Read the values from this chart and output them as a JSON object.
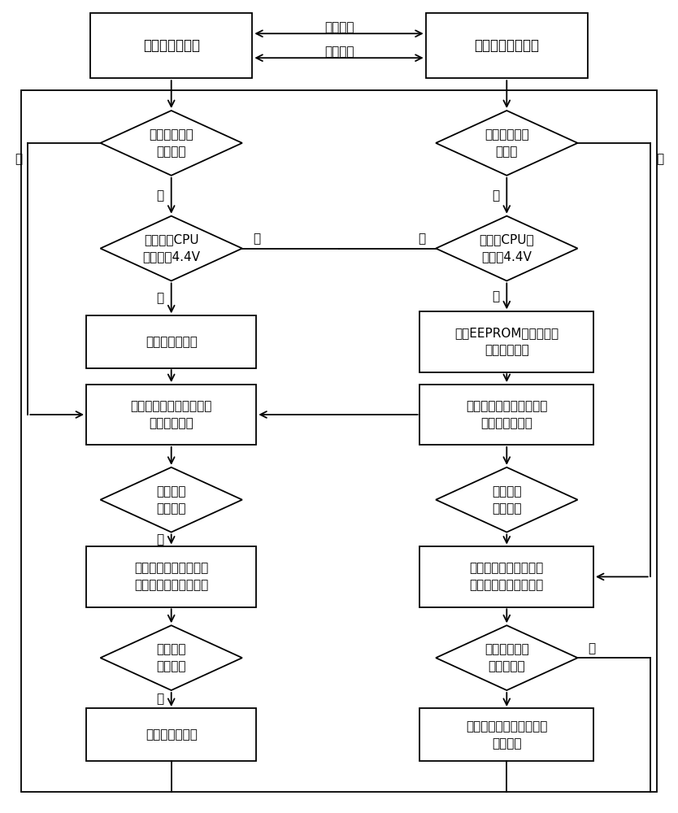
{
  "bg_color": "#ffffff",
  "line_color": "#000000",
  "text_color": "#000000",
  "top_left_text": "当班机（主机）",
  "top_right_text": "非当班机（备机）",
  "arrow_top_label": "健康状态",
  "arrow_bot_label": "工作状态",
  "L_d1_text": "非当班机连续\n四次狗咋",
  "L_d2_text": "非当班机CPU\n供电低于4.4V",
  "L_b1_text": "将非当班机断电",
  "L_b2_text": "按照自身程序或遥控指令\n执行配电操作",
  "L_d3_text": "回采操作\n结果正确",
  "L_b3_text": "将该指令内容发送给备\n机，并将备机输出使能",
  "L_d4_text": "回采操作\n结果正确",
  "L_b4_text": "将备机输出禁止",
  "R_d1_text": "当班机连续四\n次狗咋",
  "R_d2_text": "当班机CPU供\n电低于4.4V",
  "R_b1_text": "读取EEPROM中保存的当\n班机最新状态",
  "R_b2_text": "按照预设流程，执行后续\n操作并回采状态",
  "R_d3_text": "回采操作\n结果正确",
  "R_b3_text": "将非当班机切换为当班\n机，原当班机上电复位",
  "R_d4_text": "收到当班机补\n发指令请求",
  "R_b4_text": "根据当班机发送的指令，\n执行操作",
  "yes": "是",
  "no": "否"
}
